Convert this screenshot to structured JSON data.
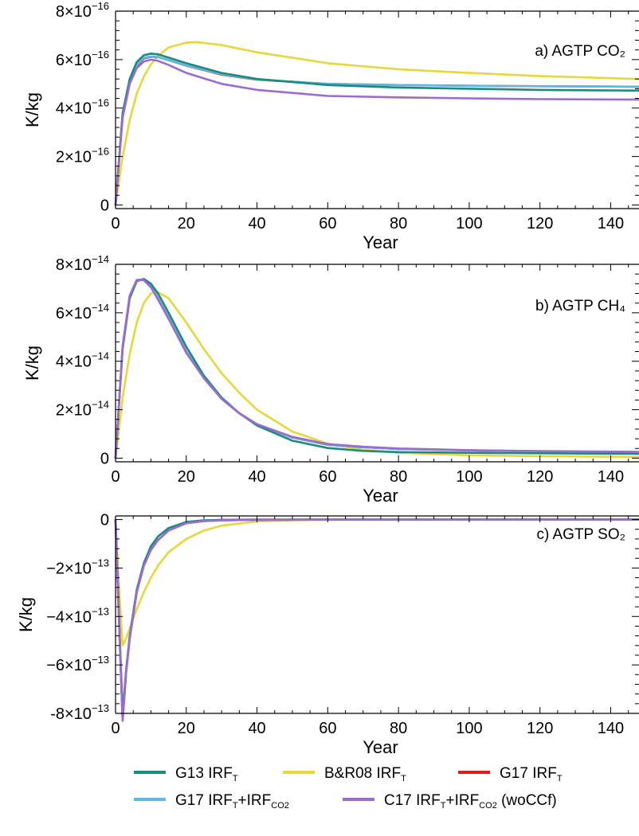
{
  "chart_data": [
    {
      "type": "line",
      "panel_label": "a) AGTP CO₂",
      "xlabel": "Year",
      "ylabel": "K/kg",
      "xlim": [
        0,
        148
      ],
      "ylim": [
        -1.5e-17,
        8e-16
      ],
      "x_ticks": [
        0,
        20,
        40,
        60,
        80,
        100,
        120,
        140
      ],
      "y_ticks": [
        0,
        2e-16,
        4e-16,
        6e-16,
        8e-16
      ],
      "y_tick_labels": [
        {
          "base": "0",
          "exp": ""
        },
        {
          "base": "2×10",
          "exp": "−16"
        },
        {
          "base": "4×10",
          "exp": "−16"
        },
        {
          "base": "6×10",
          "exp": "−16"
        },
        {
          "base": "8×10",
          "exp": "−16"
        }
      ],
      "series": [
        {
          "legend_ref": 0,
          "x": [
            0,
            2,
            4,
            6,
            8,
            10,
            12,
            15,
            20,
            30,
            40,
            60,
            80,
            100,
            120,
            148
          ],
          "y": [
            0,
            3.8e-16,
            5.2e-16,
            5.9e-16,
            6.18e-16,
            6.25e-16,
            6.22e-16,
            6.08e-16,
            5.85e-16,
            5.45e-16,
            5.2e-16,
            4.95e-16,
            4.85e-16,
            4.8e-16,
            4.75e-16,
            4.72e-16
          ]
        },
        {
          "legend_ref": 1,
          "x": [
            0,
            2,
            4,
            6,
            8,
            10,
            12,
            15,
            20,
            23,
            30,
            40,
            60,
            80,
            100,
            120,
            148
          ],
          "y": [
            0,
            2e-16,
            3.5e-16,
            4.6e-16,
            5.3e-16,
            5.8e-16,
            6.15e-16,
            6.5e-16,
            6.7e-16,
            6.72e-16,
            6.6e-16,
            6.3e-16,
            5.85e-16,
            5.6e-16,
            5.45e-16,
            5.32e-16,
            5.2e-16
          ]
        },
        {
          "legend_ref": 2,
          "x": [
            0,
            2,
            4,
            6,
            8,
            10,
            12,
            15,
            20,
            30,
            40,
            60,
            80,
            100,
            120,
            148
          ],
          "y": [
            0,
            3.7e-16,
            5.1e-16,
            5.75e-16,
            6.05e-16,
            6.12e-16,
            6.1e-16,
            5.98e-16,
            5.75e-16,
            5.38e-16,
            5.17e-16,
            5e-16,
            4.95e-16,
            4.92e-16,
            4.9e-16,
            4.88e-16
          ]
        },
        {
          "legend_ref": 3,
          "x": [
            0,
            2,
            4,
            6,
            8,
            10,
            12,
            15,
            20,
            30,
            40,
            60,
            80,
            100,
            120,
            148
          ],
          "y": [
            0,
            3.7e-16,
            5.1e-16,
            5.78e-16,
            6.07e-16,
            6.13e-16,
            6.1e-16,
            5.98e-16,
            5.76e-16,
            5.4e-16,
            5.18e-16,
            5e-16,
            4.95e-16,
            4.92e-16,
            4.9e-16,
            4.88e-16
          ]
        },
        {
          "legend_ref": 4,
          "x": [
            0,
            2,
            4,
            6,
            8,
            10,
            12,
            15,
            20,
            30,
            40,
            60,
            80,
            100,
            120,
            148
          ],
          "y": [
            0,
            3.6e-16,
            5e-16,
            5.65e-16,
            5.92e-16,
            6e-16,
            5.95e-16,
            5.78e-16,
            5.45e-16,
            5e-16,
            4.75e-16,
            4.5e-16,
            4.44e-16,
            4.4e-16,
            4.37e-16,
            4.35e-16
          ]
        }
      ]
    },
    {
      "type": "line",
      "panel_label": "b) AGTP CH₄",
      "xlabel": "Year",
      "ylabel": "K/kg",
      "xlim": [
        0,
        148
      ],
      "ylim": [
        -1.5e-15,
        8e-14
      ],
      "x_ticks": [
        0,
        20,
        40,
        60,
        80,
        100,
        120,
        140
      ],
      "y_ticks": [
        0,
        2e-14,
        4e-14,
        6e-14,
        8e-14
      ],
      "y_tick_labels": [
        {
          "base": "0",
          "exp": ""
        },
        {
          "base": "2×10",
          "exp": "−14"
        },
        {
          "base": "4×10",
          "exp": "−14"
        },
        {
          "base": "6×10",
          "exp": "−14"
        },
        {
          "base": "8×10",
          "exp": "−14"
        }
      ],
      "series": [
        {
          "legend_ref": 0,
          "x": [
            0,
            2,
            4,
            6,
            8,
            10,
            12,
            15,
            20,
            25,
            30,
            35,
            40,
            50,
            60,
            70,
            80,
            100,
            120,
            148
          ],
          "y": [
            0,
            4.5e-14,
            6.6e-14,
            7.3e-14,
            7.4e-14,
            7.2e-14,
            6.8e-14,
            6e-14,
            4.6e-14,
            3.4e-14,
            2.5e-14,
            1.85e-14,
            1.35e-14,
            7.2e-15,
            4.2e-15,
            3e-15,
            2.5e-15,
            2.2e-15,
            2e-15,
            1.8e-15
          ]
        },
        {
          "legend_ref": 1,
          "x": [
            0,
            2,
            4,
            6,
            8,
            10,
            12,
            15,
            20,
            25,
            30,
            35,
            40,
            50,
            60,
            70,
            80,
            100,
            120,
            148
          ],
          "y": [
            0,
            2.5e-14,
            4.3e-14,
            5.6e-14,
            6.4e-14,
            6.8e-14,
            6.85e-14,
            6.6e-14,
            5.6e-14,
            4.5e-14,
            3.5e-14,
            2.7e-14,
            2e-14,
            1.1e-14,
            6e-15,
            3.5e-15,
            2.2e-15,
            1.2e-15,
            8e-16,
            5e-16
          ]
        },
        {
          "legend_ref": 2,
          "x": [
            0,
            2,
            4,
            6,
            8,
            10,
            12,
            15,
            20,
            25,
            30,
            35,
            40,
            50,
            60,
            70,
            80,
            100,
            120,
            148
          ],
          "y": [
            0,
            4.6e-14,
            6.7e-14,
            7.35e-14,
            7.38e-14,
            7.1e-14,
            6.6e-14,
            5.8e-14,
            4.4e-14,
            3.3e-14,
            2.45e-14,
            1.85e-14,
            1.4e-14,
            8.5e-15,
            5.5e-15,
            4.5e-15,
            3.8e-15,
            3.2e-15,
            2.8e-15,
            2.5e-15
          ]
        },
        {
          "legend_ref": 3,
          "x": [
            0,
            2,
            4,
            6,
            8,
            10,
            12,
            15,
            20,
            25,
            30,
            35,
            40,
            50,
            60,
            70,
            80,
            100,
            120,
            148
          ],
          "y": [
            0,
            4.6e-14,
            6.7e-14,
            7.35e-14,
            7.38e-14,
            7.1e-14,
            6.6e-14,
            5.8e-14,
            4.4e-14,
            3.3e-14,
            2.45e-14,
            1.85e-14,
            1.4e-14,
            8.5e-15,
            5.5e-15,
            4.5e-15,
            3.8e-15,
            3.2e-15,
            2.8e-15,
            2.5e-15
          ]
        },
        {
          "legend_ref": 4,
          "x": [
            0,
            2,
            4,
            6,
            8,
            10,
            12,
            15,
            20,
            25,
            30,
            35,
            40,
            50,
            60,
            70,
            80,
            100,
            120,
            148
          ],
          "y": [
            0,
            4.6e-14,
            6.7e-14,
            7.35e-14,
            7.35e-14,
            7.05e-14,
            6.55e-14,
            5.75e-14,
            4.35e-14,
            3.3e-14,
            2.45e-14,
            1.85e-14,
            1.4e-14,
            8.8e-15,
            5.8e-15,
            4.7e-15,
            4e-15,
            3.3e-15,
            2.9e-15,
            2.6e-15
          ]
        }
      ]
    },
    {
      "type": "line",
      "panel_label": "c) AGTP SO₂",
      "xlabel": "Year",
      "ylabel": "K/kg",
      "xlim": [
        0,
        148
      ],
      "ylim": [
        -8e-13,
        1.5e-14
      ],
      "x_ticks": [
        0,
        20,
        40,
        60,
        80,
        100,
        120,
        140
      ],
      "y_ticks": [
        0,
        -2e-13,
        -4e-13,
        -6e-13,
        -8e-13
      ],
      "y_tick_labels": [
        {
          "base": "0",
          "exp": ""
        },
        {
          "base": "−2×10",
          "exp": "−13"
        },
        {
          "base": "−4×10",
          "exp": "−13"
        },
        {
          "base": "−6×10",
          "exp": "−13"
        },
        {
          "base": "-8×10",
          "exp": "−13"
        }
      ],
      "series": [
        {
          "legend_ref": 0,
          "x": [
            0,
            1,
            2,
            3,
            4,
            6,
            8,
            10,
            12,
            15,
            20,
            25,
            30,
            40,
            60,
            80,
            100,
            120,
            148
          ],
          "y": [
            0,
            -4e-13,
            -8e-13,
            -6.2e-13,
            -4.8e-13,
            -2.9e-13,
            -1.8e-13,
            -1.1e-13,
            -7e-14,
            -3.5e-14,
            -1e-14,
            -3e-15,
            -1e-15,
            0,
            0,
            0,
            1e-15,
            1e-15,
            1e-15
          ]
        },
        {
          "legend_ref": 1,
          "x": [
            0,
            1,
            2,
            3,
            4,
            6,
            8,
            10,
            12,
            15,
            20,
            25,
            30,
            40,
            50,
            60,
            80,
            100,
            120,
            148
          ],
          "y": [
            0,
            -2.8e-13,
            -5.2e-13,
            -4.9e-13,
            -4.5e-13,
            -3.7e-13,
            -3e-13,
            -2.4e-13,
            -1.9e-13,
            -1.35e-13,
            -8e-14,
            -4.5e-14,
            -2.5e-14,
            -8e-15,
            -3e-15,
            -1e-15,
            0,
            0,
            0,
            0
          ]
        },
        {
          "legend_ref": 2,
          "x": [
            0,
            1,
            2,
            3,
            4,
            6,
            8,
            10,
            12,
            15,
            20,
            25,
            30,
            40,
            60,
            80,
            100,
            120,
            148
          ],
          "y": [
            0,
            -4.2e-13,
            -8.3e-13,
            -6.3e-13,
            -4.9e-13,
            -3e-13,
            -1.9e-13,
            -1.25e-13,
            -8.5e-14,
            -4.5e-14,
            -1.5e-14,
            -6e-15,
            -3e-15,
            -1e-15,
            0,
            0,
            0,
            0,
            0
          ]
        },
        {
          "legend_ref": 3,
          "x": [
            0,
            1,
            2,
            3,
            4,
            6,
            8,
            10,
            12,
            15,
            20,
            25,
            30,
            40,
            60,
            80,
            100,
            120,
            148
          ],
          "y": [
            0,
            -4.2e-13,
            -8.3e-13,
            -6.3e-13,
            -4.9e-13,
            -3e-13,
            -1.9e-13,
            -1.25e-13,
            -8.5e-14,
            -4.5e-14,
            -1.5e-14,
            -6e-15,
            -3e-15,
            -1e-15,
            0,
            0,
            0,
            0,
            0
          ]
        },
        {
          "legend_ref": 4,
          "x": [
            0,
            1,
            2,
            3,
            4,
            6,
            8,
            10,
            12,
            15,
            20,
            25,
            30,
            40,
            60,
            80,
            100,
            120,
            148
          ],
          "y": [
            0,
            -4.2e-13,
            -8.3e-13,
            -6.3e-13,
            -4.9e-13,
            -3e-13,
            -1.9e-13,
            -1.25e-13,
            -8.5e-14,
            -4.5e-14,
            -1.5e-14,
            -6e-15,
            -3e-15,
            -1e-15,
            0,
            0,
            0,
            0,
            0
          ]
        }
      ]
    }
  ],
  "legend": {
    "items": [
      {
        "label": "G13 IRF",
        "sub1": "T",
        "mid": "",
        "sub2": "",
        "tail": "",
        "color": "#1a8c7c"
      },
      {
        "label": "B&R08 IRF",
        "sub1": "T",
        "mid": "",
        "sub2": "",
        "tail": "",
        "color": "#e8d63a"
      },
      {
        "label": "G17 IRF",
        "sub1": "T",
        "mid": "",
        "sub2": "",
        "tail": "",
        "color": "#e01b1b"
      },
      {
        "label": "G17 IRF",
        "sub1": "T",
        "mid": "+IRF",
        "sub2": "CO2",
        "tail": "",
        "color": "#5bb8e8"
      },
      {
        "label": "C17 IRF",
        "sub1": "T",
        "mid": "+IRF",
        "sub2": "CO2",
        "tail": " (woCCf)",
        "color": "#9b6bd0"
      }
    ]
  }
}
